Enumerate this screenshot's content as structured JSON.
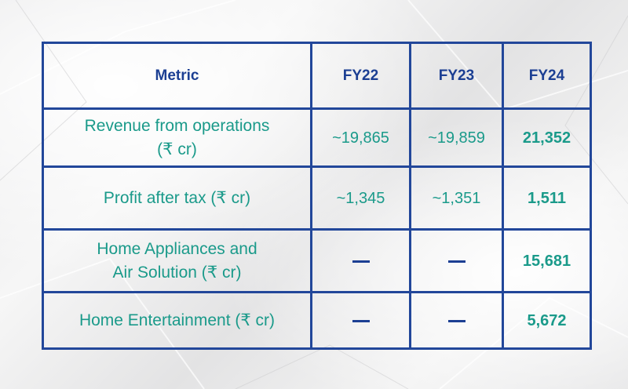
{
  "table": {
    "headers": {
      "metric": "Metric",
      "fy22": "FY22",
      "fy23": "FY23",
      "fy24": "FY24"
    },
    "rows": [
      {
        "metric_lines": [
          "Revenue from operations",
          "(₹ cr)"
        ],
        "fy22": "~19,865",
        "fy23": "~19,859",
        "fy24": "21,352"
      },
      {
        "metric_lines": [
          "Profit after tax (₹ cr)"
        ],
        "fy22": "~1,345",
        "fy23": "~1,351",
        "fy24": "1,511"
      },
      {
        "metric_lines": [
          "Home Appliances and",
          "Air Solution (₹ cr)"
        ],
        "fy22": "—",
        "fy23": "—",
        "fy24": "15,681"
      },
      {
        "metric_lines": [
          "Home Entertainment (₹ cr)"
        ],
        "fy22": "—",
        "fy23": "—",
        "fy24": "5,672"
      }
    ]
  },
  "colors": {
    "border": "#22479a",
    "header_text": "#1c3f93",
    "body_text": "#1a9a8a"
  }
}
